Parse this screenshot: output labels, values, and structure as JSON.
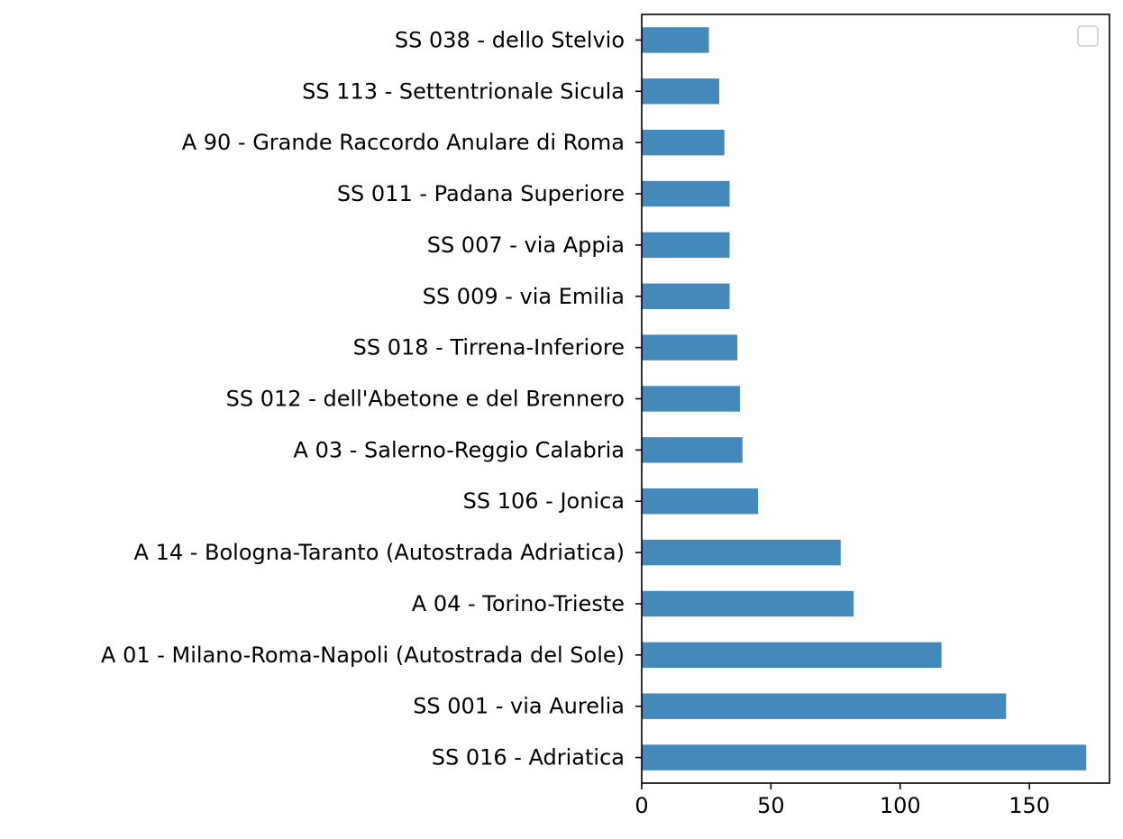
{
  "chart_data": {
    "type": "bar",
    "orientation": "horizontal",
    "categories": [
      "SS 038 -  dello Stelvio",
      "SS 113 -  Settentrionale Sicula",
      "A 90 -  Grande Raccordo Anulare di Roma",
      "SS 011 -  Padana Superiore",
      "SS 007 -  via Appia",
      "SS 009 -  via Emilia",
      "SS 018 -  Tirrena-Inferiore",
      "SS 012 -  dell'Abetone e del Brennero",
      "A 03 -  Salerno-Reggio Calabria",
      "SS 106 -  Jonica",
      "A 14 -  Bologna-Taranto (Autostrada Adriatica)",
      "A 04 -  Torino-Trieste",
      "A 01 -  Milano-Roma-Napoli (Autostrada del Sole)",
      "SS 001 -  via Aurelia",
      "SS 016 -  Adriatica"
    ],
    "values": [
      26,
      30,
      32,
      34,
      34,
      34,
      37,
      38,
      39,
      45,
      77,
      82,
      116,
      141,
      172
    ],
    "xlim": [
      0,
      181
    ],
    "xticks": [
      0,
      50,
      100,
      150
    ],
    "title": "",
    "xlabel": "",
    "ylabel": "",
    "grid": false,
    "legend": {
      "placement": "top-right",
      "entries": []
    },
    "bar_color": "#4389bb"
  }
}
